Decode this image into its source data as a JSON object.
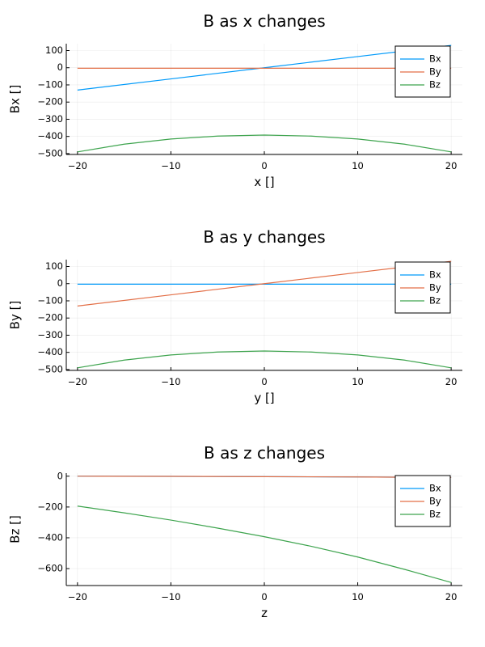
{
  "chart_data": [
    {
      "type": "line",
      "title": "B as x changes",
      "xlabel": "x []",
      "ylabel": "Bx []",
      "xlim": [
        -21.2,
        21.2
      ],
      "ylim": [
        -505,
        140
      ],
      "xticks": [
        -20,
        -10,
        0,
        10,
        20
      ],
      "xtick_labels": [
        "−20",
        "−10",
        "0",
        "10",
        "20"
      ],
      "yticks": [
        100,
        0,
        -100,
        -200,
        -300,
        -400,
        -500
      ],
      "ytick_labels": [
        "100",
        "0",
        "−100",
        "−200",
        "−300",
        "−400",
        "−500"
      ],
      "grid": true,
      "legend_position": "top-right",
      "series": [
        {
          "name": "Bx",
          "color": "#009AFA",
          "x": [
            -20,
            -10,
            0,
            10,
            20
          ],
          "y": [
            -130,
            -65,
            0,
            65,
            130
          ]
        },
        {
          "name": "By",
          "color": "#E36F47",
          "x": [
            -20,
            -10,
            0,
            10,
            20
          ],
          "y": [
            -3,
            -3,
            -3,
            -3,
            -3
          ]
        },
        {
          "name": "Bz",
          "color": "#3EA44E",
          "x": [
            -20,
            -15,
            -10,
            -5,
            0,
            5,
            10,
            15,
            20
          ],
          "y": [
            -490,
            -445,
            -415,
            -398,
            -392,
            -398,
            -415,
            -445,
            -490
          ]
        }
      ]
    },
    {
      "type": "line",
      "title": "B as y changes",
      "xlabel": "y []",
      "ylabel": "By []",
      "xlim": [
        -21.2,
        21.2
      ],
      "ylim": [
        -505,
        140
      ],
      "xticks": [
        -20,
        -10,
        0,
        10,
        20
      ],
      "xtick_labels": [
        "−20",
        "−10",
        "0",
        "10",
        "20"
      ],
      "yticks": [
        100,
        0,
        -100,
        -200,
        -300,
        -400,
        -500
      ],
      "ytick_labels": [
        "100",
        "0",
        "−100",
        "−200",
        "−300",
        "−400",
        "−500"
      ],
      "grid": true,
      "legend_position": "top-right",
      "series": [
        {
          "name": "Bx",
          "color": "#009AFA",
          "x": [
            -20,
            -10,
            0,
            10,
            20
          ],
          "y": [
            -3,
            -3,
            -3,
            -3,
            -3
          ]
        },
        {
          "name": "By",
          "color": "#E36F47",
          "x": [
            -20,
            -10,
            0,
            10,
            20
          ],
          "y": [
            -130,
            -65,
            0,
            65,
            130
          ]
        },
        {
          "name": "Bz",
          "color": "#3EA44E",
          "x": [
            -20,
            -15,
            -10,
            -5,
            0,
            5,
            10,
            15,
            20
          ],
          "y": [
            -490,
            -445,
            -415,
            -398,
            -392,
            -398,
            -415,
            -445,
            -490
          ]
        }
      ]
    },
    {
      "type": "line",
      "title": "B as z changes",
      "xlabel": "z",
      "ylabel": "Bz []",
      "xlim": [
        -21.2,
        21.2
      ],
      "ylim": [
        -710,
        20
      ],
      "xticks": [
        -20,
        -10,
        0,
        10,
        20
      ],
      "xtick_labels": [
        "−20",
        "−10",
        "0",
        "10",
        "20"
      ],
      "yticks": [
        0,
        -200,
        -400,
        -600
      ],
      "ytick_labels": [
        "0",
        "−200",
        "−400",
        "−600"
      ],
      "grid": true,
      "legend_position": "top-right",
      "series": [
        {
          "name": "Bx",
          "color": "#009AFA",
          "x": [
            -20,
            -10,
            0,
            10,
            20
          ],
          "y": [
            0,
            -1,
            -3,
            -5,
            -8
          ]
        },
        {
          "name": "By",
          "color": "#E36F47",
          "x": [
            -20,
            -10,
            0,
            10,
            20
          ],
          "y": [
            0,
            -1,
            -3,
            -5,
            -8
          ]
        },
        {
          "name": "Bz",
          "color": "#3EA44E",
          "x": [
            -20,
            -15,
            -10,
            -5,
            0,
            5,
            10,
            15,
            20
          ],
          "y": [
            -194,
            -238,
            -285,
            -337,
            -393,
            -455,
            -525,
            -605,
            -690
          ]
        }
      ]
    }
  ]
}
